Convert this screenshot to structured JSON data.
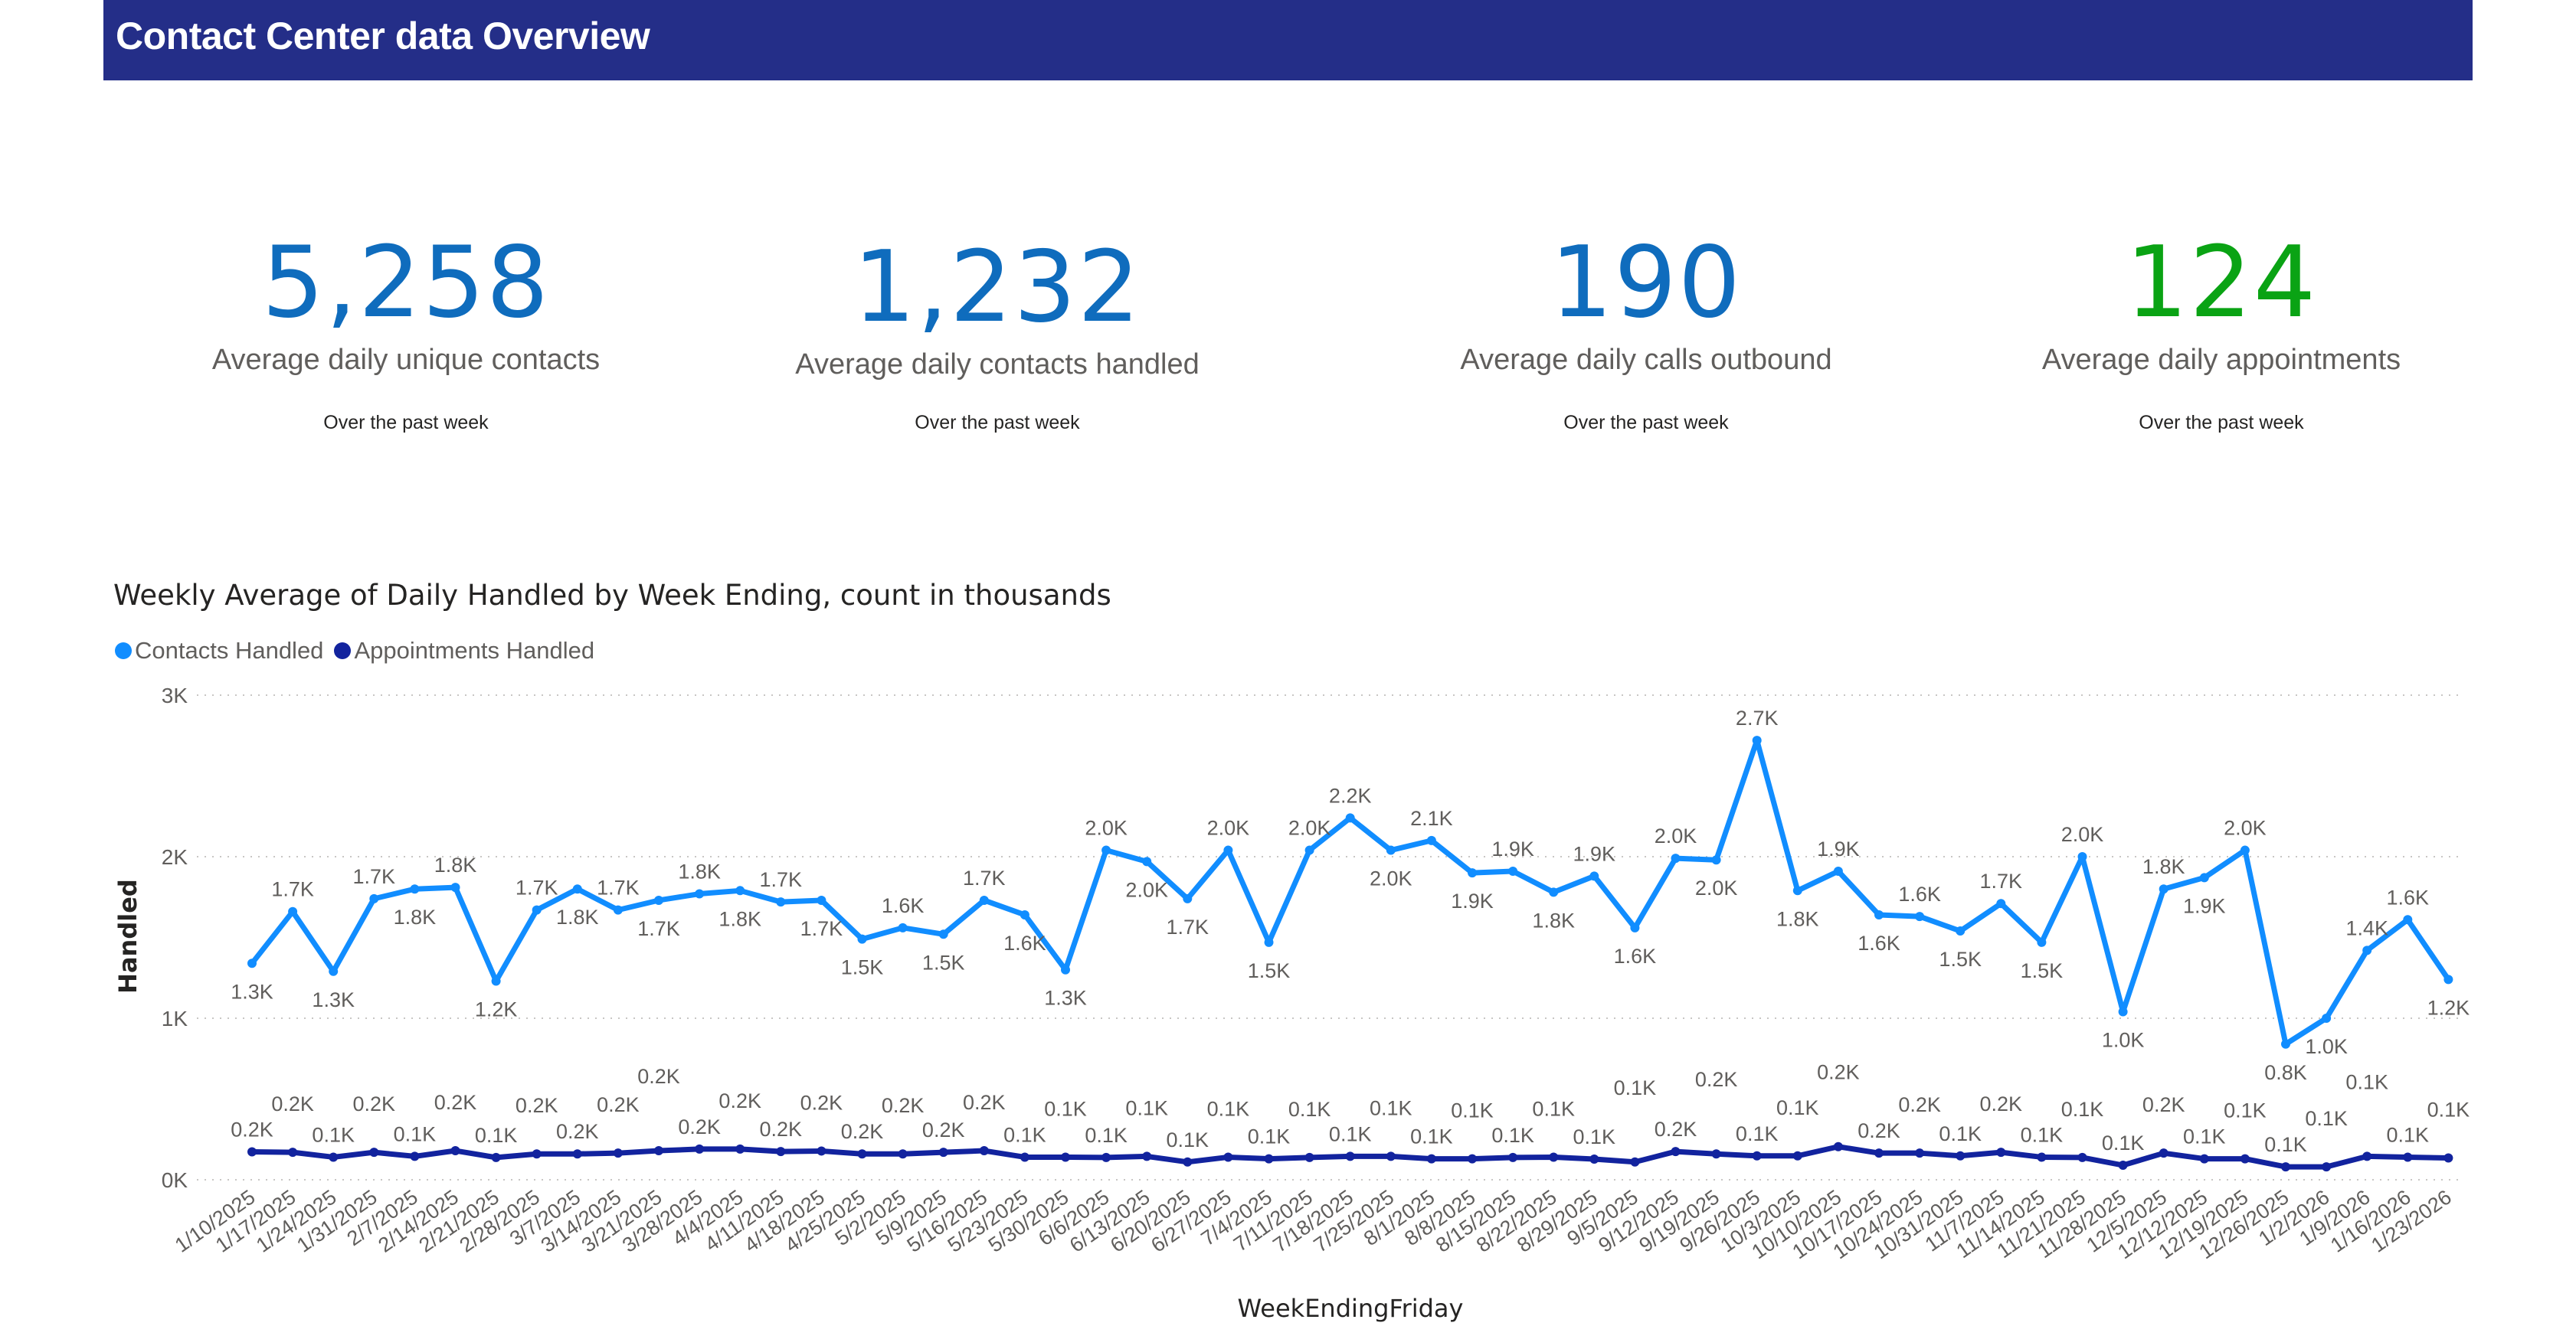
{
  "header": {
    "title": "Contact Center data Overview"
  },
  "kpis": [
    {
      "value": "5,258",
      "label": "Average daily unique contacts",
      "sub": "Over the past week",
      "color": "#0f6cbd"
    },
    {
      "value": "1,232",
      "label": "Average daily contacts handled",
      "sub": "Over the past week",
      "color": "#0f6cbd"
    },
    {
      "value": "190",
      "label": "Average daily calls outbound",
      "sub": "Over the past week",
      "color": "#0f6cbd"
    },
    {
      "value": "124",
      "label": "Average daily appointments",
      "sub": "Over the past week",
      "color": "#0aa314"
    }
  ],
  "chart_data": {
    "type": "line",
    "title": "Weekly Average of Daily Handled by Week Ending, count in thousands",
    "xlabel": "WeekEndingFriday",
    "ylabel": "Handled",
    "ylim": [
      0,
      3000
    ],
    "yticks": [
      "0K",
      "1K",
      "2K",
      "3K"
    ],
    "grid": true,
    "legend_position": "top-left",
    "categories": [
      "1/10/2025",
      "1/17/2025",
      "1/24/2025",
      "1/31/2025",
      "2/7/2025",
      "2/14/2025",
      "2/21/2025",
      "2/28/2025",
      "3/7/2025",
      "3/14/2025",
      "3/21/2025",
      "3/28/2025",
      "4/4/2025",
      "4/11/2025",
      "4/18/2025",
      "4/25/2025",
      "5/2/2025",
      "5/9/2025",
      "5/16/2025",
      "5/23/2025",
      "5/30/2025",
      "6/6/2025",
      "6/13/2025",
      "6/20/2025",
      "6/27/2025",
      "7/4/2025",
      "7/11/2025",
      "7/18/2025",
      "7/25/2025",
      "8/1/2025",
      "8/8/2025",
      "8/15/2025",
      "8/22/2025",
      "8/29/2025",
      "9/5/2025",
      "9/12/2025",
      "9/19/2025",
      "9/26/2025",
      "10/3/2025",
      "10/10/2025",
      "10/17/2025",
      "10/24/2025",
      "10/31/2025",
      "11/7/2025",
      "11/14/2025",
      "11/21/2025",
      "11/28/2025",
      "12/5/2025",
      "12/12/2025",
      "12/19/2025",
      "12/26/2025",
      "1/2/2026",
      "1/9/2026",
      "1/16/2026",
      "1/23/2026"
    ],
    "series": [
      {
        "name": "Contacts Handled",
        "color": "#118dff",
        "values": [
          1340,
          1660,
          1290,
          1740,
          1800,
          1810,
          1230,
          1670,
          1800,
          1670,
          1730,
          1770,
          1790,
          1720,
          1730,
          1490,
          1560,
          1520,
          1730,
          1640,
          1300,
          2040,
          1970,
          1740,
          2040,
          1470,
          2040,
          2240,
          2040,
          2100,
          1900,
          1910,
          1780,
          1880,
          1560,
          1990,
          1980,
          2720,
          1790,
          1910,
          1640,
          1630,
          1540,
          1710,
          1470,
          2000,
          1040,
          1800,
          1870,
          2040,
          840,
          1000,
          1420,
          1610,
          1240
        ]
      },
      {
        "name": "Appointments Handled",
        "color": "#12239e",
        "values": [
          173,
          170,
          140,
          170,
          145,
          180,
          138,
          160,
          160,
          165,
          180,
          190,
          190,
          175,
          178,
          160,
          160,
          170,
          180,
          140,
          140,
          138,
          145,
          110,
          140,
          130,
          138,
          145,
          145,
          130,
          130,
          138,
          140,
          128,
          110,
          175,
          160,
          148,
          148,
          205,
          165,
          165,
          148,
          170,
          140,
          138,
          90,
          165,
          130,
          130,
          80,
          80,
          145,
          140,
          135
        ]
      }
    ]
  }
}
